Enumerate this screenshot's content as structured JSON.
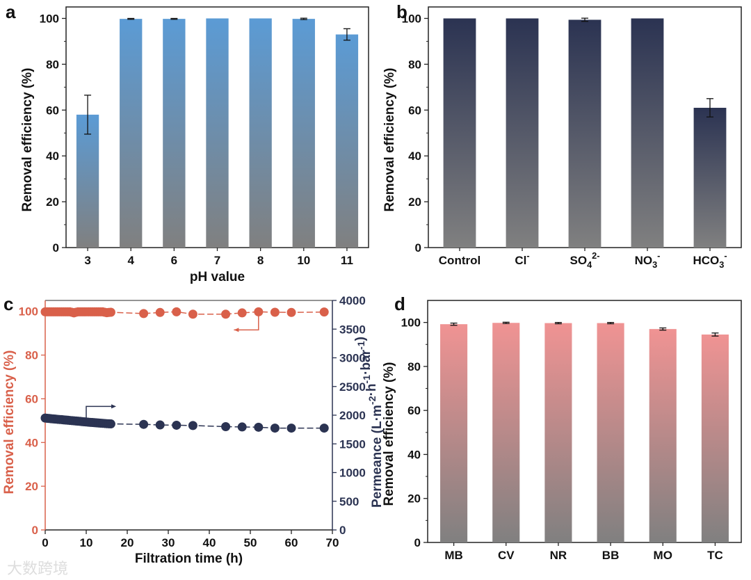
{
  "chart_data": [
    {
      "panel": "a",
      "type": "bar",
      "categories": [
        {
          "text": "3"
        },
        {
          "text": "4"
        },
        {
          "text": "6"
        },
        {
          "text": "7"
        },
        {
          "text": "8"
        },
        {
          "text": "10"
        },
        {
          "text": "11"
        }
      ],
      "values": [
        58,
        99.8,
        99.8,
        100,
        100,
        99.8,
        93
      ],
      "errors": [
        8.5,
        0.2,
        0.2,
        0,
        0,
        0.3,
        2.5
      ],
      "xlabel": "pH value",
      "ylabel": "Removal efficiency (%)",
      "ylim": [
        0,
        105
      ],
      "yticks": [
        0,
        20,
        40,
        60,
        80,
        100
      ],
      "color_top": "#5b9bd5",
      "color_bottom": "#808080"
    },
    {
      "panel": "b",
      "type": "bar",
      "categories": [
        {
          "text": "Control"
        },
        {
          "text": "Cl",
          "sup": "-"
        },
        {
          "text": "SO",
          "sub": "4",
          "sup": "2-"
        },
        {
          "text": "NO",
          "sub": "3",
          "sup": "-"
        },
        {
          "text": "HCO",
          "sub": "3",
          "sup": "-"
        }
      ],
      "values": [
        100,
        100,
        99.4,
        100,
        61
      ],
      "errors": [
        0,
        0,
        0.7,
        0,
        4
      ],
      "xlabel": "",
      "ylabel": "Removal efficiency (%)",
      "ylim": [
        0,
        105
      ],
      "yticks": [
        0,
        20,
        40,
        60,
        80,
        100
      ],
      "color_top": "#2b3352",
      "color_bottom": "#808080"
    },
    {
      "panel": "c",
      "type": "line",
      "xlabel": "Filtration time (h)",
      "ylabel": "Removal efficiency (%)",
      "ylabel_right": [
        {
          "t": "Permeance (L·m"
        },
        {
          "sup": "-2"
        },
        {
          "t": "·h"
        },
        {
          "sup": "-1"
        },
        {
          "t": "·bar"
        },
        {
          "sup": "-1"
        },
        {
          "t": ")"
        }
      ],
      "xlim": [
        0,
        70
      ],
      "xticks": [
        0,
        10,
        20,
        30,
        40,
        50,
        60,
        70
      ],
      "ylim": [
        0,
        105
      ],
      "yticks": [
        0,
        20,
        40,
        60,
        80,
        100
      ],
      "ylim_right": [
        0,
        4000
      ],
      "yticks_right": [
        0,
        500,
        1000,
        1500,
        2000,
        2500,
        3000,
        3500,
        4000
      ],
      "series": [
        {
          "name": "Removal efficiency",
          "axis": "left",
          "color": "#d9604a",
          "x": [
            0,
            0.5,
            1,
            1.5,
            2,
            2.5,
            3,
            3.5,
            4,
            4.5,
            5,
            5.5,
            6,
            6.5,
            7,
            7.5,
            8,
            8.5,
            9,
            9.5,
            10,
            10.5,
            11,
            11.5,
            12,
            12.5,
            13,
            13.5,
            14,
            14.5,
            15,
            15.5,
            16,
            24,
            28,
            32,
            36,
            44,
            48,
            52,
            56,
            60,
            68
          ],
          "y": [
            99.8,
            99.8,
            99.8,
            99.8,
            99.8,
            99.8,
            99.8,
            99.8,
            99.8,
            99.8,
            99.8,
            99.8,
            99.8,
            99.6,
            99.3,
            99.6,
            99.8,
            99.8,
            99.8,
            99.8,
            99.8,
            99.8,
            99.8,
            99.8,
            99.8,
            99.8,
            99.8,
            99.8,
            99.8,
            99.6,
            99.4,
            99.5,
            99.6,
            99.0,
            99.5,
            99.8,
            98.7,
            98.7,
            99.3,
            99.8,
            99.6,
            99.5,
            99.7
          ]
        },
        {
          "name": "Permeance",
          "axis": "right",
          "color": "#2b3352",
          "x": [
            0,
            0.5,
            1,
            1.5,
            2,
            2.5,
            3,
            3.5,
            4,
            4.5,
            5,
            5.5,
            6,
            6.5,
            7,
            7.5,
            8,
            8.5,
            9,
            9.5,
            10,
            10.5,
            11,
            11.5,
            12,
            12.5,
            13,
            13.5,
            14,
            14.5,
            15,
            15.5,
            16,
            24,
            28,
            32,
            36,
            44,
            48,
            52,
            56,
            60,
            68
          ],
          "y": [
            1950,
            1945,
            1942,
            1938,
            1935,
            1932,
            1928,
            1925,
            1922,
            1918,
            1915,
            1912,
            1908,
            1905,
            1902,
            1898,
            1895,
            1892,
            1888,
            1885,
            1882,
            1878,
            1875,
            1872,
            1870,
            1866,
            1863,
            1860,
            1858,
            1855,
            1852,
            1850,
            1848,
            1840,
            1830,
            1825,
            1820,
            1800,
            1795,
            1790,
            1775,
            1775,
            1775
          ]
        }
      ]
    },
    {
      "panel": "d",
      "type": "bar",
      "categories": [
        {
          "text": "MB"
        },
        {
          "text": "CV"
        },
        {
          "text": "NR"
        },
        {
          "text": "BB"
        },
        {
          "text": "MO"
        },
        {
          "text": "TC"
        }
      ],
      "values": [
        99.2,
        99.8,
        99.7,
        99.7,
        97,
        94.5
      ],
      "errors": [
        0.5,
        0.3,
        0.3,
        0.3,
        0.5,
        0.7
      ],
      "xlabel": "",
      "ylabel": "Removal efficiency (%)",
      "ylim": [
        0,
        110
      ],
      "yticks": [
        0,
        20,
        40,
        60,
        80,
        100
      ],
      "color_top": "#f09393",
      "color_bottom": "#808080"
    }
  ],
  "watermark": "大数跨境"
}
